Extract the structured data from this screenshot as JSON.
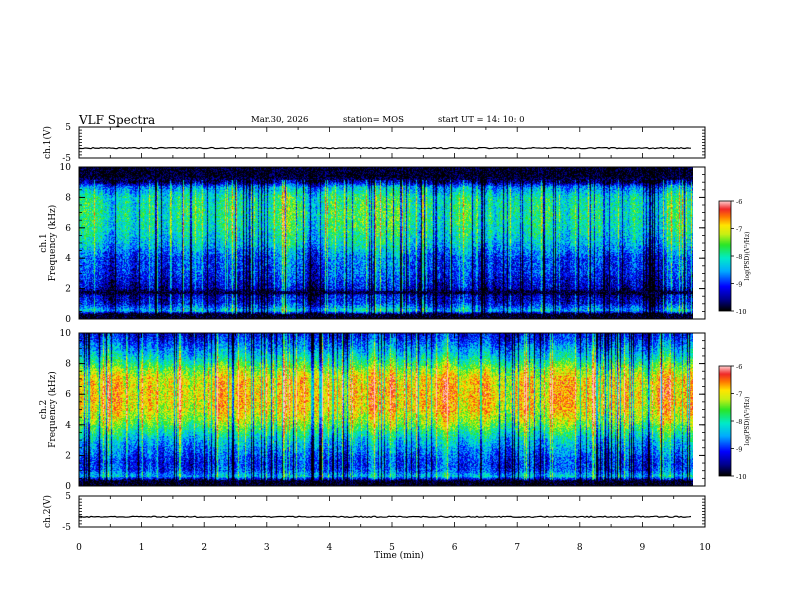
{
  "header": {
    "title": "VLF Spectra",
    "date": "Mar.30, 2026",
    "station": "station= MOS",
    "start": "start  UT  =   14: 10: 0"
  },
  "chart_data": [
    {
      "type": "line",
      "name": "ch1-voltage",
      "ylabel": "ch.1(V)",
      "ylim": [
        -5,
        5
      ],
      "yticks": [
        "5",
        "-5"
      ],
      "xlim": [
        0,
        10
      ],
      "level": -1.8
    },
    {
      "type": "heatmap",
      "name": "ch1-spectrogram",
      "ylabel": "ch.1\nFrequency (kHz)",
      "ylim": [
        0,
        10
      ],
      "yticks": [
        "0",
        "2",
        "4",
        "6",
        "8",
        "10"
      ],
      "xlim": [
        0,
        9.82
      ],
      "colorbar": {
        "label": "log(PSD)(V²/Hz)",
        "range": [
          -10,
          -6
        ],
        "ticks": [
          "-6",
          "-7",
          "-8",
          "-9",
          "-10"
        ]
      },
      "intensity_profile": [
        {
          "f": 0.0,
          "v": -10
        },
        {
          "f": 0.3,
          "v": -10
        },
        {
          "f": 0.5,
          "v": -8.3
        },
        {
          "f": 1.0,
          "v": -9.2
        },
        {
          "f": 1.5,
          "v": -9.4
        },
        {
          "f": 1.7,
          "v": -10
        },
        {
          "f": 2.0,
          "v": -9.4
        },
        {
          "f": 3.0,
          "v": -9.0
        },
        {
          "f": 4.0,
          "v": -8.9
        },
        {
          "f": 5.0,
          "v": -8.3
        },
        {
          "f": 6.0,
          "v": -8.0
        },
        {
          "f": 7.0,
          "v": -7.9
        },
        {
          "f": 8.0,
          "v": -8.0
        },
        {
          "f": 8.7,
          "v": -8.6
        },
        {
          "f": 9.0,
          "v": -9.6
        },
        {
          "f": 9.4,
          "v": -10
        },
        {
          "f": 10.0,
          "v": -10
        }
      ]
    },
    {
      "type": "heatmap",
      "name": "ch2-spectrogram",
      "ylabel": "ch.2\nFrequency (kHz)",
      "ylim": [
        0,
        10
      ],
      "yticks": [
        "0",
        "2",
        "4",
        "6",
        "8",
        "10"
      ],
      "xlim": [
        0,
        9.82
      ],
      "colorbar": {
        "label": "log(PSD)(V²/Hz)",
        "range": [
          -10,
          -6
        ],
        "ticks": [
          "-6",
          "-7",
          "-8",
          "-9",
          "-10"
        ]
      },
      "intensity_profile": [
        {
          "f": 0.0,
          "v": -10
        },
        {
          "f": 0.3,
          "v": -10
        },
        {
          "f": 0.6,
          "v": -8.3
        },
        {
          "f": 1.0,
          "v": -8.9
        },
        {
          "f": 1.5,
          "v": -9.0
        },
        {
          "f": 2.0,
          "v": -8.8
        },
        {
          "f": 3.0,
          "v": -8.3
        },
        {
          "f": 3.6,
          "v": -7.8
        },
        {
          "f": 4.2,
          "v": -7.3
        },
        {
          "f": 5.0,
          "v": -6.9
        },
        {
          "f": 6.0,
          "v": -6.8
        },
        {
          "f": 7.0,
          "v": -6.9
        },
        {
          "f": 7.6,
          "v": -7.3
        },
        {
          "f": 8.2,
          "v": -7.9
        },
        {
          "f": 8.8,
          "v": -8.4
        },
        {
          "f": 9.5,
          "v": -8.9
        },
        {
          "f": 10.0,
          "v": -9.2
        }
      ]
    },
    {
      "type": "line",
      "name": "ch2-voltage",
      "ylabel": "ch.2(V)",
      "ylim": [
        -5,
        5
      ],
      "yticks": [
        "5",
        "-5"
      ],
      "xlim": [
        0,
        10
      ],
      "level": -1.7
    }
  ],
  "xaxis": {
    "label": "Time  (min)",
    "ticks": [
      "0",
      "1",
      "2",
      "3",
      "4",
      "5",
      "6",
      "7",
      "8",
      "9",
      "10"
    ],
    "range": [
      0,
      10
    ]
  }
}
